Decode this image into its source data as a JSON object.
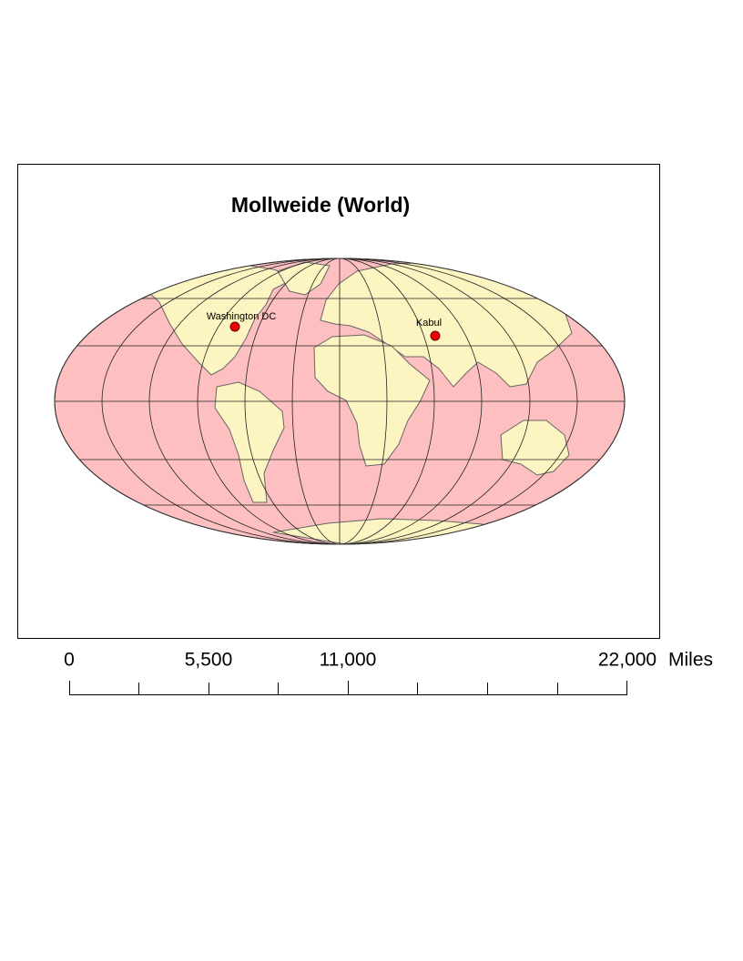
{
  "title": "Mollweide (World)",
  "cities": [
    {
      "label": "Washington DC"
    },
    {
      "label": "Kabul"
    }
  ],
  "scale_bar": {
    "labels": [
      "0",
      "5,500",
      "11,000",
      "22,000"
    ],
    "unit": "Miles"
  }
}
